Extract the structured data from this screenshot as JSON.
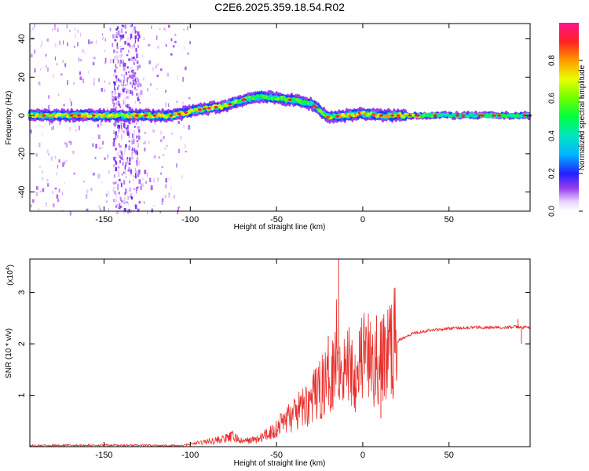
{
  "title": "C2E6.2025.359.18.54.R02",
  "colors": {
    "trace": "#e8302c",
    "background": "#ffffff",
    "axis": "#000000"
  },
  "chart_data": [
    {
      "type": "heatmap",
      "xlabel": "Height of straight line (km)",
      "ylabel": "Frequency (Hz)",
      "xlim": [
        -193,
        97
      ],
      "ylim": [
        -50,
        48
      ],
      "xticks": [
        -150,
        -100,
        -50,
        0,
        50
      ],
      "xtick_labels": [
        "-150",
        "-100",
        "-50",
        "0",
        "50"
      ],
      "yticks": [
        -40,
        -20,
        0,
        20,
        40
      ],
      "ytick_labels": [
        "-40",
        "-20",
        "0",
        "20",
        "40"
      ],
      "colorbar": {
        "label": "Normalized spectral amplitude",
        "range": [
          0,
          1
        ],
        "ticks": [
          0.0,
          0.2,
          0.4,
          0.6,
          0.8
        ],
        "tick_labels": [
          "0.0",
          "0.2",
          "0.4",
          "0.6",
          "0.8"
        ]
      },
      "ridge": {
        "height_km": [
          -193,
          -150,
          -110,
          -95,
          -80,
          -70,
          -60,
          -50,
          -40,
          -30,
          -25,
          -20,
          -10,
          0,
          10,
          20,
          50,
          97
        ],
        "frequency_hz": [
          0,
          0,
          0,
          3,
          5,
          8,
          10,
          9,
          8,
          6,
          3,
          -1,
          0,
          1,
          0,
          0,
          0,
          0
        ],
        "amplitude": [
          0.75,
          0.75,
          0.7,
          0.7,
          0.65,
          0.6,
          0.5,
          0.6,
          0.6,
          0.55,
          0.6,
          0.65,
          0.75,
          0.85,
          0.8,
          0.75,
          0.45,
          0.5
        ]
      },
      "noise_band_km": [
        -145,
        -130
      ]
    },
    {
      "type": "line",
      "xlabel": "Height of straight line (km)",
      "ylabel": "SNR (10 * v/v)",
      "y_multiplier": "(x10",
      "y_multiplier_exp": "4",
      "y_multiplier_close": ")",
      "xlim": [
        -193,
        97
      ],
      "ylim": [
        0,
        3.65
      ],
      "xticks": [
        -150,
        -100,
        -50,
        0,
        50
      ],
      "xtick_labels": [
        "-150",
        "-100",
        "-50",
        "0",
        "50"
      ],
      "yticks": [
        1,
        2,
        3
      ],
      "ytick_labels": [
        "1",
        "2",
        "3"
      ],
      "series": [
        {
          "name": "SNR",
          "x": [
            -193,
            -150,
            -105,
            -100,
            -90,
            -80,
            -75,
            -70,
            -60,
            -50,
            -45,
            -40,
            -35,
            -30,
            -25,
            -20,
            -17,
            -15,
            -13,
            -10,
            -7,
            -5,
            -3,
            0,
            3,
            5,
            8,
            10,
            12,
            15,
            20,
            25,
            30,
            40,
            50,
            60,
            70,
            80,
            88,
            92,
            97
          ],
          "y": [
            0.02,
            0.03,
            0.02,
            0.05,
            0.1,
            0.15,
            0.2,
            0.1,
            0.15,
            0.35,
            0.55,
            0.6,
            0.75,
            0.9,
            1.1,
            1.35,
            1.6,
            2.0,
            1.6,
            1.5,
            1.7,
            1.4,
            1.6,
            1.8,
            1.7,
            1.6,
            1.5,
            1.55,
            1.75,
            1.9,
            2.05,
            2.15,
            2.22,
            2.27,
            2.3,
            2.32,
            2.32,
            2.32,
            2.33,
            2.32,
            2.32
          ],
          "spikes": [
            {
              "x": -14,
              "y": 3.65
            },
            {
              "x": 8,
              "y": 2.55
            },
            {
              "x": 10.5,
              "y": 0.55
            },
            {
              "x": -5,
              "y": 0.8
            },
            {
              "x": -2,
              "y": 2.25
            },
            {
              "x": -20,
              "y": 2.15
            },
            {
              "x": 92,
              "y": 2.0
            },
            {
              "x": 90,
              "y": 2.48
            }
          ]
        }
      ]
    }
  ]
}
